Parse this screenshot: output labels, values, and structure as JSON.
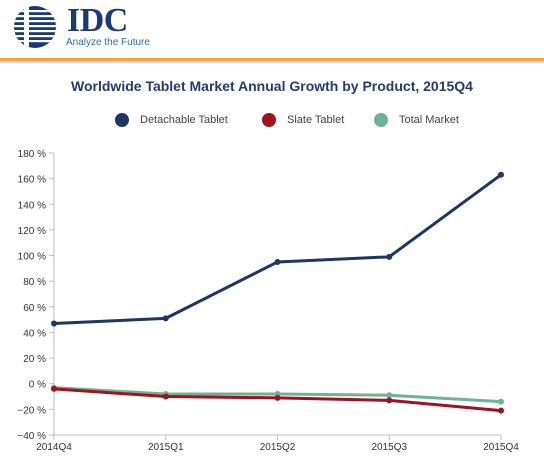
{
  "brand": {
    "logo_text": "IDC",
    "tagline": "Analyze the Future",
    "logo_icon": "globe-icon",
    "colors": {
      "navy": "#1b3a73",
      "accent": "#f5a23a"
    }
  },
  "chart_data": {
    "type": "line",
    "title": "Worldwide Tablet Market Annual Growth by Product, 2015Q4",
    "xlabel": "",
    "ylabel": "",
    "categories": [
      "2014Q4",
      "2015Q1",
      "2015Q2",
      "2015Q3",
      "2015Q4"
    ],
    "ylim": [
      -40,
      180
    ],
    "ytick_step": 20,
    "ytick_labels": [
      "180 %",
      "160 %",
      "140 %",
      "120 %",
      "100 %",
      "80 %",
      "60 %",
      "40 %",
      "20 %",
      "0 %",
      "−20 %",
      "−40 %"
    ],
    "legend_position": "top",
    "grid": false,
    "series": [
      {
        "name": "Detachable Tablet",
        "color": "#1f3566",
        "values": [
          47,
          51,
          95,
          99,
          163
        ]
      },
      {
        "name": "Slate Tablet",
        "color": "#a3101f",
        "values": [
          -4,
          -10,
          -11,
          -13,
          -21
        ]
      },
      {
        "name": "Total Market",
        "color": "#6fb394",
        "values": [
          -3,
          -8,
          -8,
          -9,
          -14
        ]
      }
    ]
  }
}
